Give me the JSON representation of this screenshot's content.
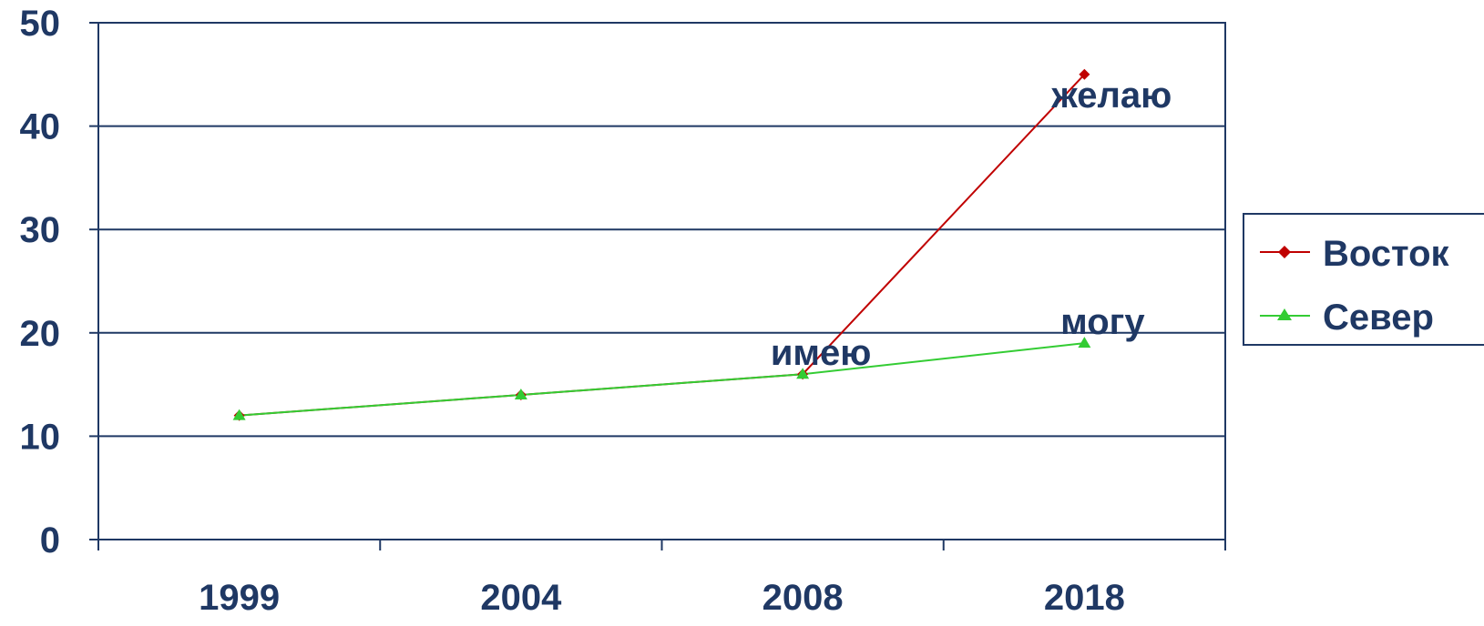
{
  "chart_data": {
    "type": "line",
    "title": "",
    "xlabel": "",
    "ylabel": "",
    "categories": [
      "1999",
      "2004",
      "2008",
      "2018"
    ],
    "ylim": [
      0,
      50
    ],
    "yticks": [
      "0",
      "10",
      "20",
      "30",
      "40",
      "50"
    ],
    "grid": true,
    "legend_position": "right",
    "series": [
      {
        "name": "Восток",
        "values": [
          12,
          14,
          16,
          45
        ],
        "color": "#c00000",
        "marker": "diamond"
      },
      {
        "name": "Север",
        "values": [
          12,
          14,
          16,
          19
        ],
        "color": "#33cc33",
        "marker": "triangle"
      }
    ],
    "annotations": [
      {
        "text": "имею",
        "category": "2008",
        "value": 16
      },
      {
        "text": "могу",
        "category": "2018",
        "value": 19
      },
      {
        "text": "желаю",
        "category": "2018",
        "value": 45
      }
    ]
  }
}
